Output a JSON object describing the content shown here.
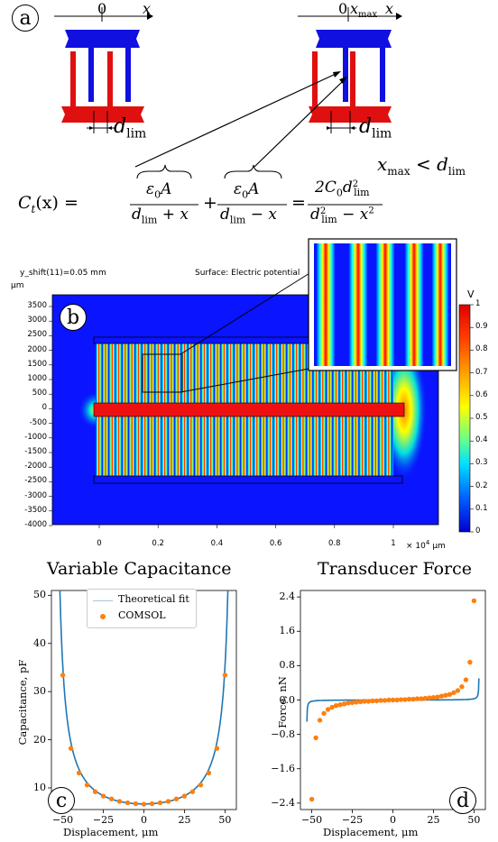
{
  "panel_a": {
    "label": "a",
    "axis_origin": "0",
    "axis_var": "x",
    "axis_xmax": "x",
    "axis_xmax_sub": "max",
    "dlim_main": "d",
    "dlim_sub": "lim",
    "condition_lhs": "x",
    "condition_lhs_sub": "max",
    "condition_op": "<",
    "condition_rhs": "d",
    "condition_rhs_sub": "lim",
    "formula": {
      "lhs": "C",
      "lhs_sub": "t",
      "lhs_arg": "(x)",
      "eq": "=",
      "num1": "ε",
      "num1_sub": "0",
      "num1_rest": "A",
      "den1": "d",
      "den1_sub": "lim",
      "den1_rest": " + x",
      "plus": "+",
      "num2": "ε",
      "num2_sub": "0",
      "num2_rest": "A",
      "den2": "d",
      "den2_sub": "lim",
      "den2_rest": " − x",
      "eq2": "=",
      "num3": "2C",
      "num3_sub": "0",
      "num3_d": "d",
      "num3_dsub": "lim",
      "num3_dsup": "2",
      "den3": "d",
      "den3_sub": "lim",
      "den3_sup": "2",
      "den3_rest": " − x",
      "den3_rest_sup": "2"
    },
    "colors": {
      "blue": "#1010e0",
      "red": "#e01010"
    }
  },
  "panel_b": {
    "label": "b",
    "header_left": "y_shift(11)=0.05 mm",
    "header_right": "Surface: Electric potential",
    "y_unit": "μm",
    "x_unit": "μm",
    "x_scale_note": "× 10",
    "x_scale_exp": "4",
    "y_ticks": [
      "3500",
      "3000",
      "2500",
      "2000",
      "1500",
      "1000",
      "500",
      "0",
      "-500",
      "-1000",
      "-1500",
      "-2000",
      "-2500",
      "-3000",
      "-3500",
      "-4000"
    ],
    "x_ticks": [
      "0",
      "0.2",
      "0.4",
      "0.6",
      "0.8",
      "1"
    ],
    "colorbar_unit": "V",
    "colorbar_ticks": [
      "1",
      "0.9",
      "0.8",
      "0.7",
      "0.6",
      "0.5",
      "0.4",
      "0.3",
      "0.2",
      "0.1",
      "0"
    ]
  },
  "panel_c": {
    "label": "c",
    "title": "Variable Capacitance",
    "xlabel": "Displacement, μm",
    "ylabel": "Capacitance, pF",
    "legend_fit": "Theoretical fit",
    "legend_comsol": "COMSOL",
    "x_ticks": [
      "−50",
      "−25",
      "0",
      "25",
      "50"
    ],
    "y_ticks": [
      "10",
      "20",
      "30",
      "40",
      "50"
    ]
  },
  "panel_d": {
    "label": "d",
    "title": "Transducer Force",
    "xlabel": "Displacement, μm",
    "ylabel": "Force, nN",
    "x_ticks": [
      "−50",
      "−25",
      "0",
      "25",
      "50"
    ],
    "y_ticks": [
      "2.4",
      "1.6",
      "0.8",
      "0.0",
      "−0.8",
      "−1.6",
      "−2.4"
    ]
  },
  "chart_data": [
    {
      "type": "line",
      "title": "Variable Capacitance",
      "xlabel": "Displacement, μm",
      "ylabel": "Capacitance, pF",
      "xlim": [
        -57,
        57
      ],
      "ylim": [
        5.5,
        51
      ],
      "series": [
        {
          "name": "Theoretical fit",
          "kind": "line",
          "color": "#1f77b4",
          "C0": 6.66,
          "dlim": 55.5
        },
        {
          "name": "COMSOL",
          "kind": "scatter",
          "color": "#ff7f0e",
          "x": [
            -50,
            -45,
            -40,
            -35,
            -30,
            -25,
            -20,
            -15,
            -10,
            -5,
            0,
            5,
            10,
            15,
            20,
            25,
            30,
            35,
            40,
            45,
            50
          ],
          "y": [
            33.4,
            18.2,
            13.1,
            10.6,
            9.2,
            8.3,
            7.7,
            7.2,
            6.9,
            6.7,
            6.6,
            6.7,
            6.9,
            7.2,
            7.7,
            8.3,
            9.2,
            10.6,
            13.1,
            18.2,
            33.4
          ]
        }
      ],
      "legend": "top-center"
    },
    {
      "type": "line",
      "title": "Transducer Force",
      "xlabel": "Displacement, μm",
      "ylabel": "Force, nN",
      "xlim": [
        -57,
        57
      ],
      "ylim": [
        -2.55,
        2.55
      ],
      "series": [
        {
          "name": "Theoretical fit",
          "kind": "line",
          "color": "#1f77b4"
        },
        {
          "name": "COMSOL",
          "kind": "scatter",
          "color": "#ff7f0e",
          "x": [
            -50,
            -47.5,
            -45,
            -42.5,
            -40,
            -37.5,
            -35,
            -32.5,
            -30,
            -27.5,
            -25,
            -22.5,
            -20,
            -17.5,
            -15,
            -12.5,
            -10,
            -7.5,
            -5,
            -2.5,
            0,
            2.5,
            5,
            7.5,
            10,
            12.5,
            15,
            17.5,
            20,
            22.5,
            25,
            27.5,
            30,
            32.5,
            35,
            37.5,
            40,
            42.5,
            45,
            47.5,
            50
          ],
          "y": [
            -2.31,
            -0.88,
            -0.47,
            -0.31,
            -0.22,
            -0.17,
            -0.13,
            -0.11,
            -0.09,
            -0.07,
            -0.06,
            -0.05,
            -0.04,
            -0.03,
            -0.03,
            -0.02,
            -0.02,
            -0.01,
            -0.01,
            0,
            0,
            0,
            0.01,
            0.01,
            0.02,
            0.02,
            0.03,
            0.03,
            0.04,
            0.05,
            0.06,
            0.07,
            0.09,
            0.11,
            0.13,
            0.17,
            0.22,
            0.31,
            0.47,
            0.88,
            2.31
          ]
        }
      ]
    }
  ]
}
